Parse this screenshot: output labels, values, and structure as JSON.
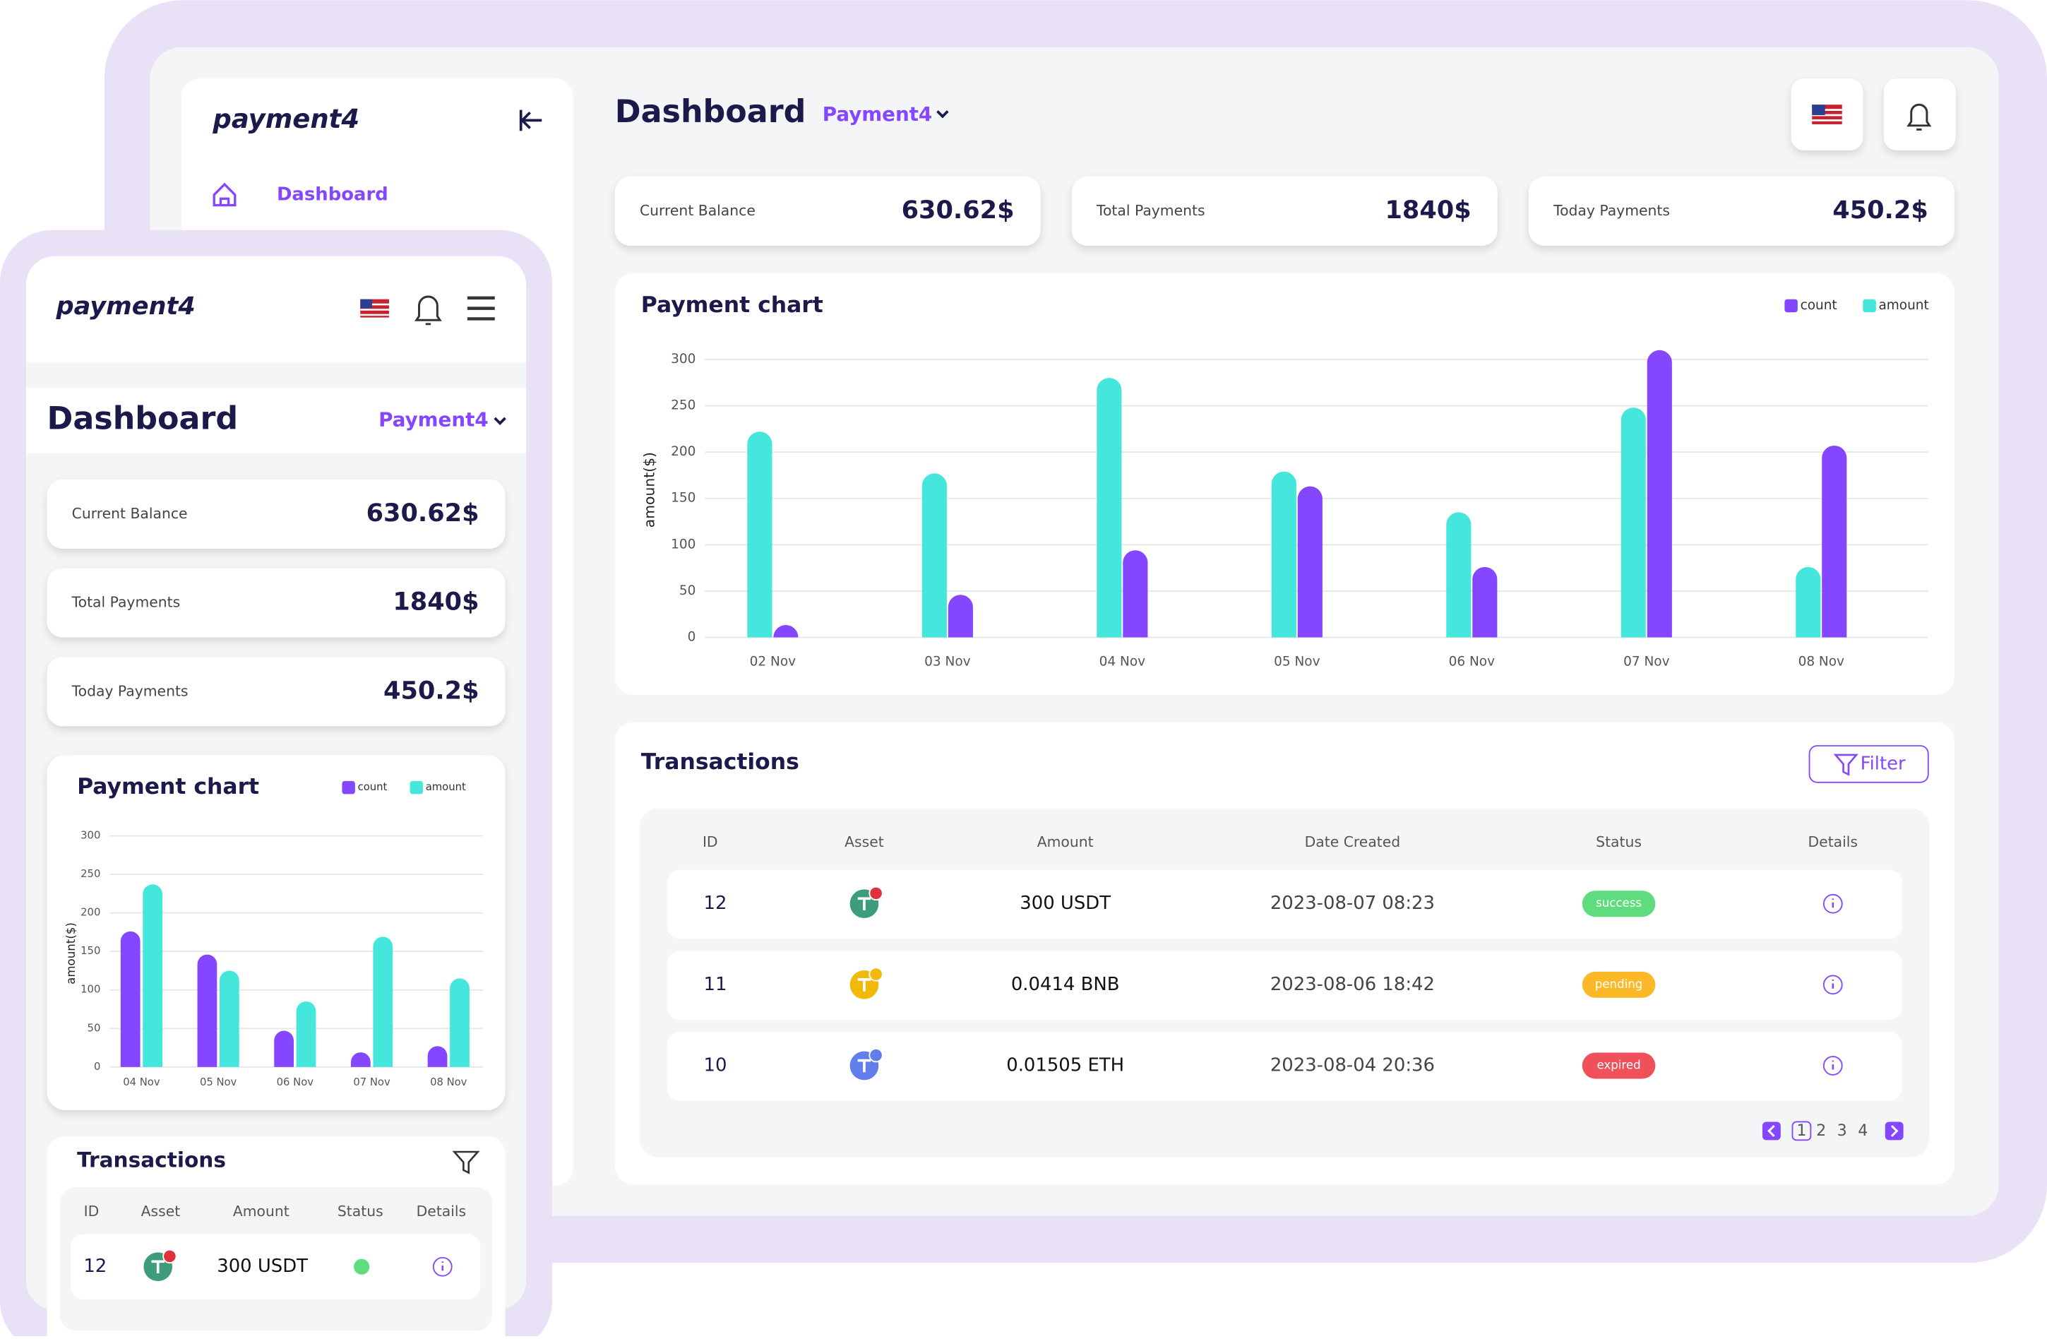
{
  "desktop": {
    "logo": "payment4",
    "nav": [
      "Dashboard"
    ],
    "title": "Dashboard",
    "selector": "Payment4",
    "stats": [
      {
        "label": "Current Balance",
        "value": "630.62$"
      },
      {
        "label": "Total Payments",
        "value": "1840$"
      },
      {
        "label": "Today Payments",
        "value": "450.2$"
      }
    ],
    "chart_data": {
      "type": "bar",
      "title": "Payment chart",
      "y_label": "amount($)",
      "categories": [
        "02 Nov",
        "03 Nov",
        "04 Nov",
        "05 Nov",
        "06 Nov",
        "07 Nov",
        "08 Nov"
      ],
      "series": [
        {
          "name": "count",
          "color": "#8447ff",
          "values": [
            12,
            46,
            94,
            163,
            76,
            310,
            207
          ]
        },
        {
          "name": "amount",
          "color": "#45e6dc",
          "values": [
            222,
            177,
            280,
            179,
            135,
            248,
            76
          ]
        }
      ],
      "ylim": [
        0,
        310
      ],
      "yticks": [
        0,
        50,
        100,
        150,
        200,
        250,
        300
      ],
      "grid": true
    },
    "transactions": {
      "title": "Transactions",
      "filter": "Filter",
      "columns": [
        "ID",
        "Asset",
        "Amount",
        "Date Created",
        "Status",
        "Details"
      ],
      "rows": [
        [
          "12",
          "300 USDT",
          "2023-08-07 08:23",
          "success"
        ],
        [
          "11",
          "0.0414 BNB",
          "2023-08-06 18:42",
          "pending"
        ],
        [
          "10",
          "0.01505 ETH",
          "2023-08-04 20:36",
          "expired"
        ]
      ],
      "pages": [
        "1",
        "2",
        "3",
        "4"
      ]
    }
  },
  "mobile": {
    "logo": "payment4",
    "title": "Dashboard",
    "selector": "Payment4",
    "stats": [
      {
        "label": "Current Balance",
        "value": "630.62$"
      },
      {
        "label": "Total Payments",
        "value": "1840$"
      },
      {
        "label": "Today Payments",
        "value": "450.2$"
      }
    ],
    "chart_data": {
      "type": "bar",
      "title": "Payment chart",
      "y_label": "amount($)",
      "categories": [
        "04 Nov",
        "05 Nov",
        "06 Nov",
        "07 Nov",
        "08 Nov"
      ],
      "series": [
        {
          "name": "count",
          "color": "#8447ff",
          "values": [
            176,
            146,
            47,
            19,
            27
          ]
        },
        {
          "name": "amount",
          "color": "#45e6dc",
          "values": [
            237,
            125,
            85,
            169,
            115
          ]
        }
      ],
      "ylim": [
        0,
        300
      ],
      "yticks": [
        0,
        50,
        100,
        150,
        200,
        250,
        300
      ],
      "grid": true
    },
    "transactions": {
      "title": "Transactions",
      "columns": [
        "ID",
        "Asset",
        "Amount",
        "Status",
        "Details"
      ],
      "rows": [
        [
          "12",
          "300 USDT"
        ]
      ]
    }
  }
}
